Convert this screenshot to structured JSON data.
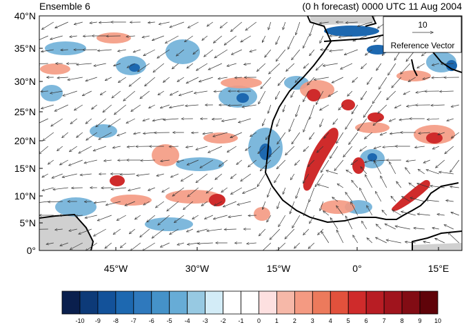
{
  "title_left": "Ensemble 6",
  "title_right": "(0 h forecast) 0000 UTC 11 Aug 2004",
  "lat_labels": [
    "40°N",
    "35°N",
    "30°N",
    "25°N",
    "20°N",
    "15°N",
    "10°N",
    "5°N",
    "0°"
  ],
  "lon_labels": [
    "45°W",
    "30°W",
    "15°W",
    "0°",
    "15°E"
  ],
  "reference_vector": {
    "magnitude": "10",
    "label": "Reference Vector"
  },
  "colorbar": {
    "labels": [
      "-10",
      "-9",
      "-8",
      "-7",
      "-6",
      "-5",
      "-4",
      "-3",
      "-2",
      "-1",
      "0",
      "1",
      "2",
      "3",
      "4",
      "5",
      "6",
      "7",
      "8",
      "9",
      "10"
    ],
    "colors": [
      "#0a1f4d",
      "#0d3a78",
      "#13529a",
      "#1d68b0",
      "#2f79bd",
      "#4592c9",
      "#67acd6",
      "#97c9e2",
      "#d3ecf7",
      "#ffffff",
      "#ffffff",
      "#fde0e0",
      "#f6b8a8",
      "#f49a82",
      "#ec7a5c",
      "#e2513c",
      "#cf2b2b",
      "#b81d24",
      "#a0141d",
      "#820c14",
      "#5f0309"
    ]
  },
  "map_colors": {
    "land_mask": "#d0d0d0",
    "coastline": "#000000",
    "vector": "#222222"
  }
}
